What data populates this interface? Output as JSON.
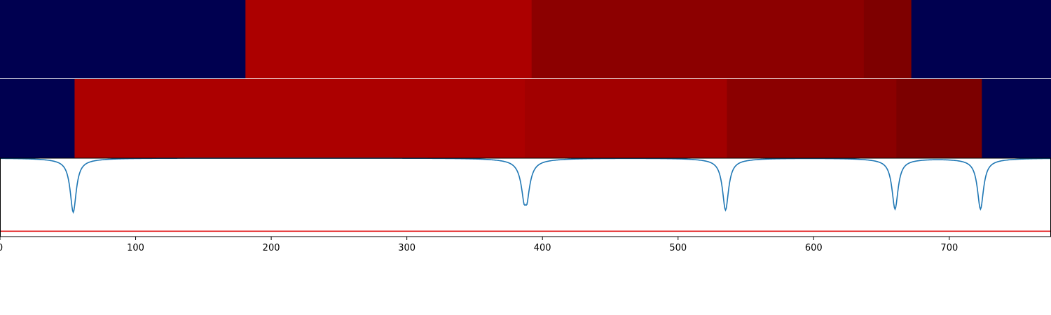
{
  "chart_data": [
    {
      "type": "heatmap",
      "panel": "top-band",
      "segments": [
        {
          "start": 0,
          "end": 181,
          "color": "#000050"
        },
        {
          "start": 181,
          "end": 392,
          "color": "#ac0000"
        },
        {
          "start": 392,
          "end": 637,
          "color": "#8c0000"
        },
        {
          "start": 637,
          "end": 672,
          "color": "#7e0000"
        },
        {
          "start": 672,
          "end": 775,
          "color": "#000050"
        }
      ]
    },
    {
      "type": "heatmap",
      "panel": "middle-band",
      "segments": [
        {
          "start": 0,
          "end": 55,
          "color": "#000050"
        },
        {
          "start": 55,
          "end": 387,
          "color": "#ac0000"
        },
        {
          "start": 387,
          "end": 536,
          "color": "#a20000"
        },
        {
          "start": 536,
          "end": 661,
          "color": "#8b0000"
        },
        {
          "start": 661,
          "end": 724,
          "color": "#7c0000"
        },
        {
          "start": 724,
          "end": 775,
          "color": "#000050"
        }
      ]
    },
    {
      "type": "line",
      "panel": "signal",
      "xlim": [
        0,
        775
      ],
      "ylim": [
        -1.45,
        0.0
      ],
      "dips": [
        {
          "center": 54,
          "depth": 0.94,
          "width": 6
        },
        {
          "center": 387.5,
          "depth": 0.92,
          "width": 7,
          "double": true
        },
        {
          "center": 535,
          "depth": 0.9,
          "width": 6
        },
        {
          "center": 660,
          "depth": 0.88,
          "width": 6
        },
        {
          "center": 723,
          "depth": 0.88,
          "width": 6
        }
      ],
      "threshold": -1.35,
      "line_color": "#1f77b4",
      "threshold_color": "#e31a1c",
      "x_ticks": [
        0,
        100,
        200,
        300,
        400,
        500,
        600,
        700
      ]
    }
  ]
}
